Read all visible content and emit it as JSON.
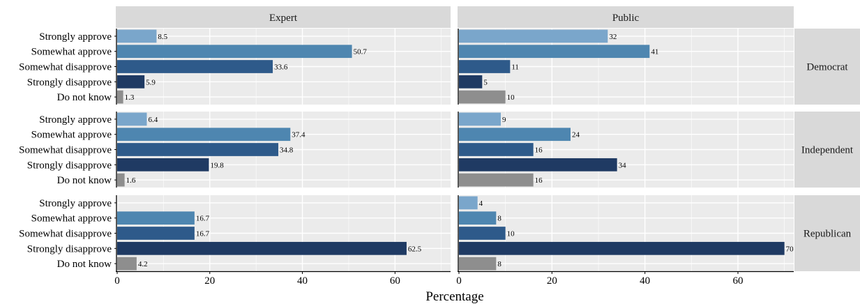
{
  "chart_data": {
    "type": "bar",
    "orientation": "horizontal",
    "xlabel": "Percentage",
    "xlim": [
      0,
      72
    ],
    "xticks": [
      0,
      20,
      40,
      60
    ],
    "categories": [
      "Strongly approve",
      "Somewhat approve",
      "Somewhat disapprove",
      "Strongly disapprove",
      "Do not know"
    ],
    "columns": [
      "Expert",
      "Public"
    ],
    "rows": [
      "Democrat",
      "Independent",
      "Republican"
    ],
    "colors": {
      "Strongly approve": "#7aa6cb",
      "Somewhat approve": "#4e86b0",
      "Somewhat disapprove": "#2e5a8a",
      "Strongly disapprove": "#1f3a63",
      "Do not know": "#8e8e8e"
    },
    "panels": [
      {
        "column": "Expert",
        "row": "Democrat",
        "values": [
          8.5,
          50.7,
          33.6,
          5.9,
          1.3
        ],
        "labels": [
          "8.5",
          "50.7",
          "33.6",
          "5.9",
          "1.3"
        ]
      },
      {
        "column": "Public",
        "row": "Democrat",
        "values": [
          32,
          41,
          11,
          5,
          10
        ],
        "labels": [
          "32",
          "41",
          "11",
          "5",
          "10"
        ]
      },
      {
        "column": "Expert",
        "row": "Independent",
        "values": [
          6.4,
          37.4,
          34.8,
          19.8,
          1.6
        ],
        "labels": [
          "6.4",
          "37.4",
          "34.8",
          "19.8",
          "1.6"
        ]
      },
      {
        "column": "Public",
        "row": "Independent",
        "values": [
          9,
          24,
          16,
          34,
          16
        ],
        "labels": [
          "9",
          "24",
          "16",
          "34",
          "16"
        ]
      },
      {
        "column": "Expert",
        "row": "Republican",
        "values": [
          0,
          16.7,
          16.7,
          62.5,
          4.2
        ],
        "labels": [
          "",
          "16.7",
          "16.7",
          "62.5",
          "4.2"
        ]
      },
      {
        "column": "Public",
        "row": "Republican",
        "values": [
          4,
          8,
          10,
          70,
          8
        ],
        "labels": [
          "4",
          "8",
          "10",
          "70",
          "8"
        ]
      }
    ]
  }
}
